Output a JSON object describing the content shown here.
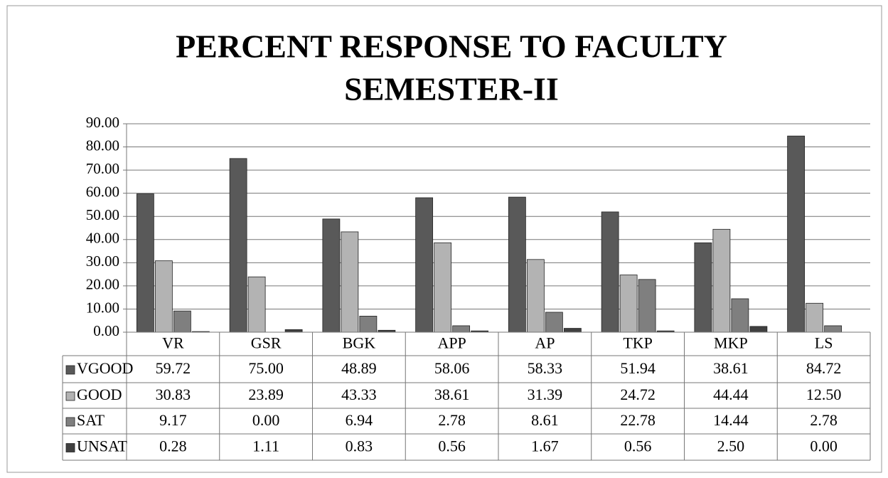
{
  "chart_data": {
    "type": "bar",
    "title": "PERCENT RESPONSE TO FACULTY",
    "subtitle": "SEMESTER-II",
    "categories": [
      "VR",
      "GSR",
      "BGK",
      "APP",
      "AP",
      "TKP",
      "MKP",
      "LS"
    ],
    "series": [
      {
        "name": "VGOOD",
        "color": "#595959",
        "values": [
          59.72,
          75,
          48.89,
          58.06,
          58.33,
          51.94,
          38.61,
          84.72
        ],
        "value_labels": [
          "59.72",
          "75.00",
          "48.89",
          "58.06",
          "58.33",
          "51.94",
          "38.61",
          "84.72"
        ]
      },
      {
        "name": "GOOD",
        "color": "#b3b3b3",
        "values": [
          30.83,
          23.89,
          43.33,
          38.61,
          31.39,
          24.72,
          44.44,
          12.5
        ],
        "value_labels": [
          "30.83",
          "23.89",
          "43.33",
          "38.61",
          "31.39",
          "24.72",
          "44.44",
          "12.50"
        ]
      },
      {
        "name": "SAT",
        "color": "#7f7f7f",
        "values": [
          9.17,
          0,
          6.94,
          2.78,
          8.61,
          22.78,
          14.44,
          2.78
        ],
        "value_labels": [
          "9.17",
          "0.00",
          "6.94",
          "2.78",
          "8.61",
          "22.78",
          "14.44",
          "2.78"
        ]
      },
      {
        "name": "UNSAT",
        "color": "#404040",
        "values": [
          0.28,
          1.11,
          0.83,
          0.56,
          1.67,
          0.56,
          2.5,
          0
        ],
        "value_labels": [
          "0.28",
          "1.11",
          "0.83",
          "0.56",
          "1.67",
          "0.56",
          "2.50",
          "0.00"
        ]
      }
    ],
    "ylim": [
      0,
      90
    ],
    "yticks": [
      {
        "value": 0,
        "label": "0.00"
      },
      {
        "value": 10,
        "label": "10.00"
      },
      {
        "value": 20,
        "label": "20.00"
      },
      {
        "value": 30,
        "label": "30.00"
      },
      {
        "value": 40,
        "label": "40.00"
      },
      {
        "value": 50,
        "label": "50.00"
      },
      {
        "value": 60,
        "label": "60.00"
      },
      {
        "value": 70,
        "label": "70.00"
      },
      {
        "value": 80,
        "label": "80.00"
      },
      {
        "value": 90,
        "label": "90.00"
      }
    ],
    "grid": true
  }
}
